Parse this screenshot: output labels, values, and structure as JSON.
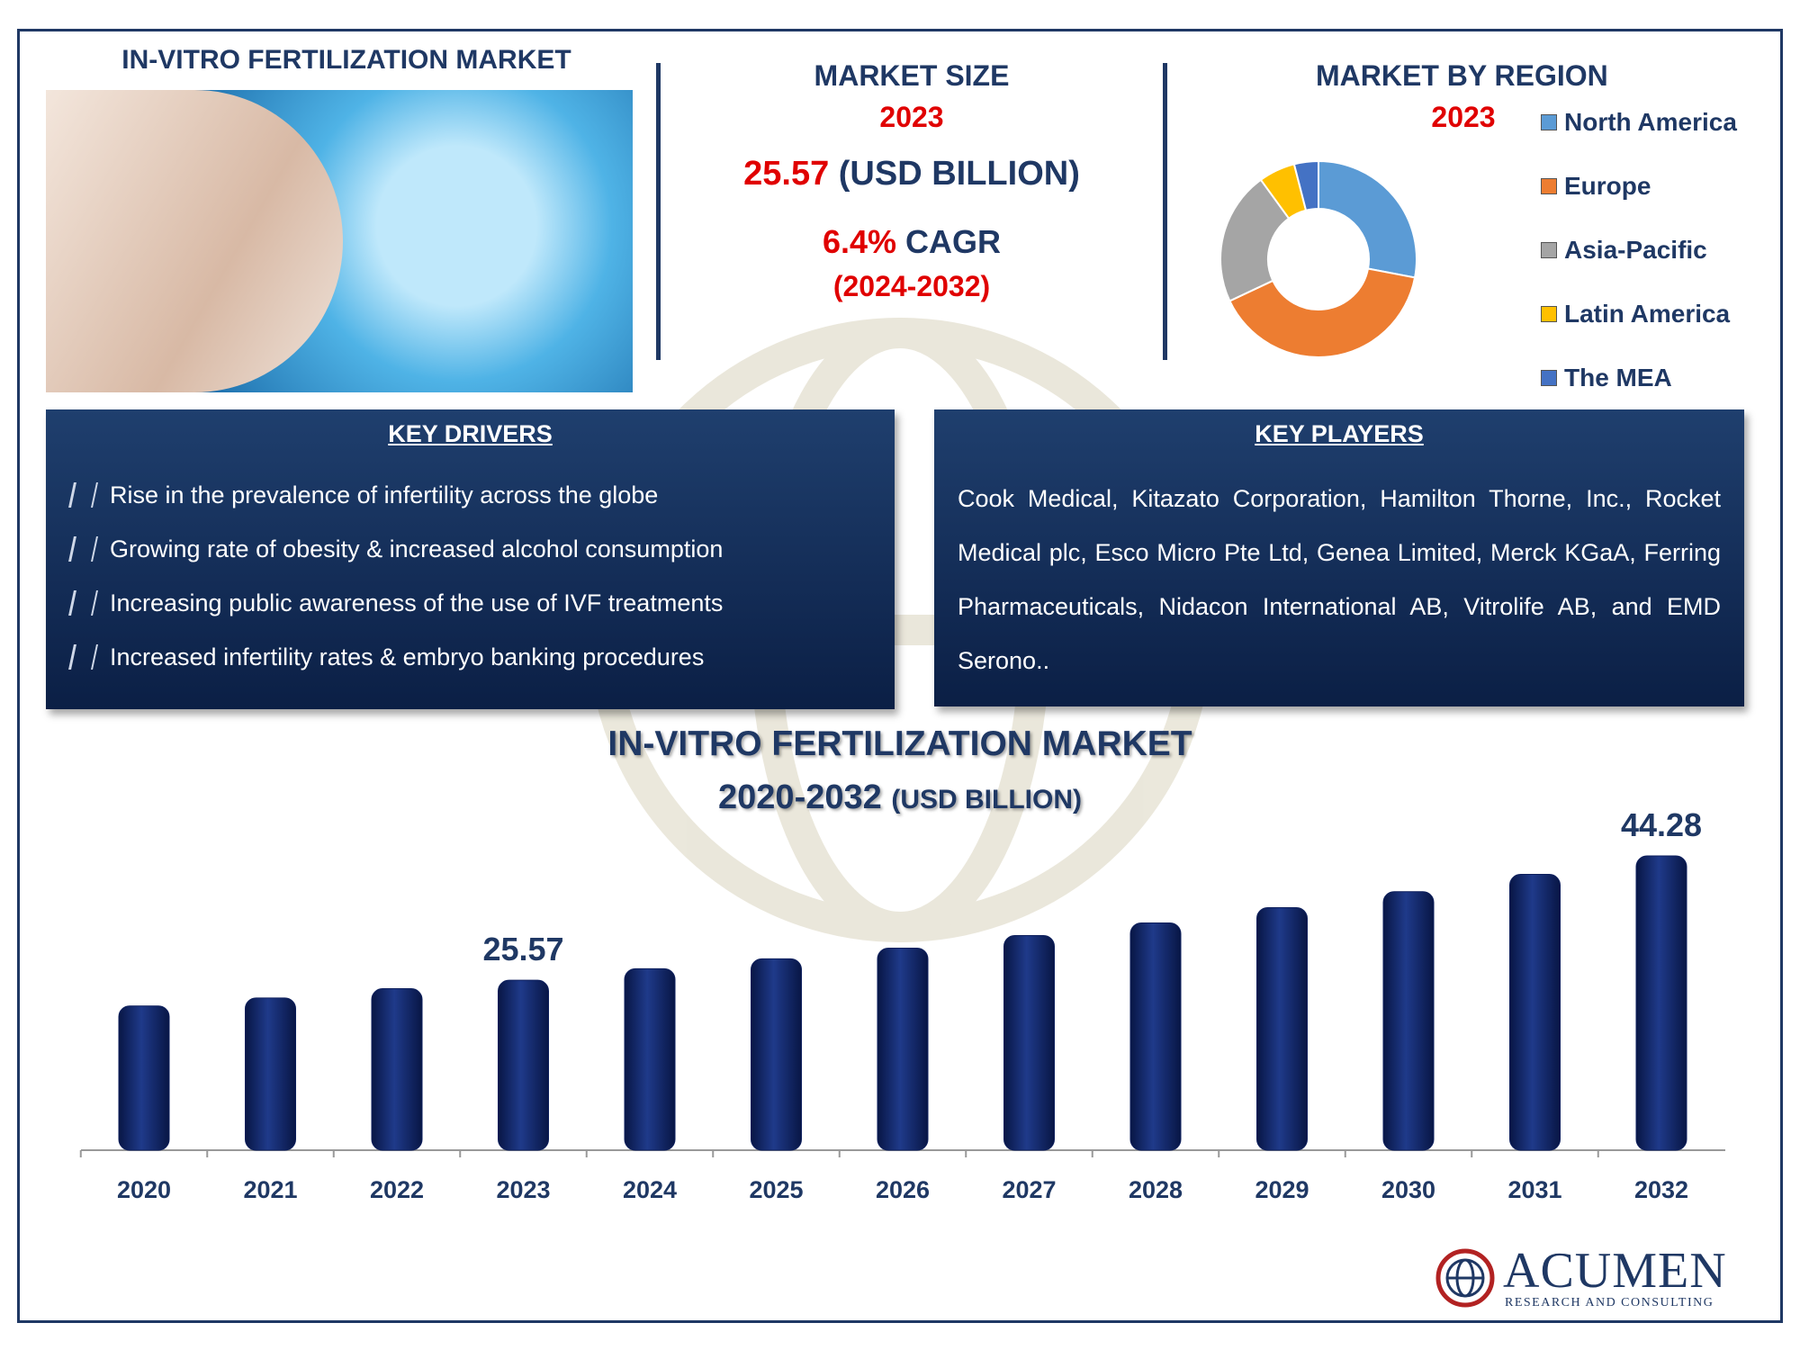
{
  "header": {
    "title": "IN-VITRO FERTILIZATION MARKET"
  },
  "market_size": {
    "heading": "MARKET SIZE",
    "year": "2023",
    "value": 25.57,
    "unit": "(USD BILLION)",
    "cagr": "6.4%",
    "cagr_label": "CAGR",
    "period": "(2024-2032)"
  },
  "key_drivers": {
    "heading": "KEY DRIVERS",
    "items": [
      "Rise in the prevalence of infertility across the globe",
      "Growing rate of obesity & increased alcohol consumption",
      "Increasing public awareness of the use of IVF treatments",
      "Increased infertility rates & embryo banking procedures"
    ]
  },
  "key_players": {
    "heading": "KEY PLAYERS",
    "text": "Cook Medical, Kitazato Corporation, Hamilton Thorne, Inc., Rocket Medical plc, Esco Micro Pte Ltd, Genea Limited, Merck KGaA, Ferring Pharmaceuticals, Nidacon International AB, Vitrolife AB, and EMD Serono.."
  },
  "logo": {
    "name": "ACUMEN",
    "tagline": "RESEARCH AND CONSULTING"
  },
  "chart_data": [
    {
      "type": "bar",
      "title": "IN-VITRO FERTILIZATION MARKET",
      "subtitle": "2020-2032",
      "unit": "(USD BILLION)",
      "categories": [
        "2020",
        "2021",
        "2022",
        "2023",
        "2024",
        "2025",
        "2026",
        "2027",
        "2028",
        "2029",
        "2030",
        "2031",
        "2032"
      ],
      "values": [
        21.7,
        22.9,
        24.3,
        25.57,
        27.3,
        28.8,
        30.4,
        32.3,
        34.2,
        36.5,
        38.9,
        41.5,
        44.28
      ],
      "value_labels": [
        null,
        null,
        null,
        "25.57",
        null,
        null,
        null,
        null,
        null,
        null,
        null,
        null,
        "44.28"
      ],
      "color": "#0d1f5c"
    },
    {
      "type": "donut",
      "title": "MARKET BY REGION",
      "subtitle": "2023",
      "categories": [
        "North America",
        "Europe",
        "Asia-Pacific",
        "Latin America",
        "The MEA"
      ],
      "values": [
        28,
        40,
        22,
        6,
        4
      ],
      "colors": [
        "#5b9bd5",
        "#ed7d31",
        "#a5a5a5",
        "#ffc000",
        "#4472c4"
      ]
    }
  ]
}
